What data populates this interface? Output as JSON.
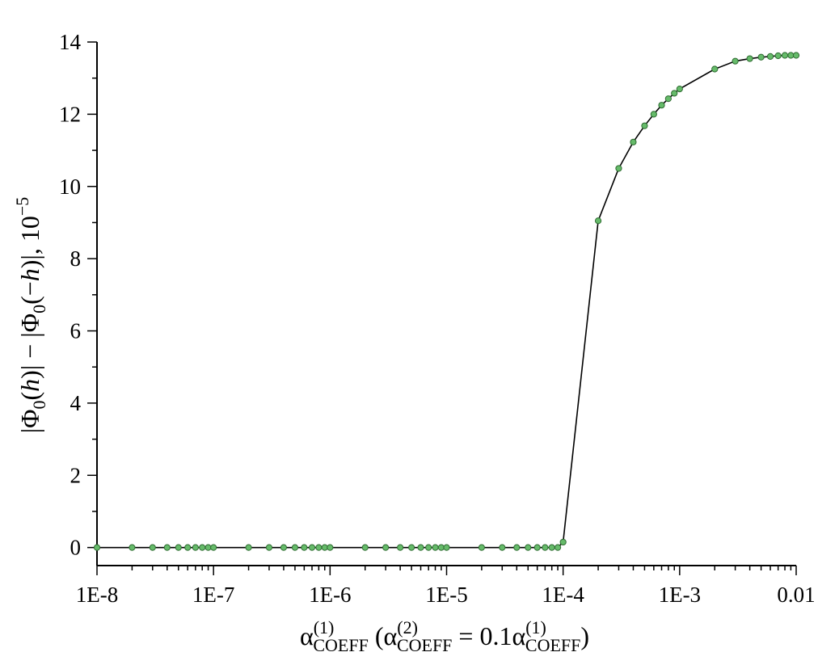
{
  "chart_data": {
    "type": "line",
    "x_scale": "log",
    "xlim": [
      "1E-8",
      "0.01"
    ],
    "ylim": [
      -0.5,
      14
    ],
    "x_tick_labels": [
      "1E-8",
      "1E-7",
      "1E-6",
      "1E-5",
      "1E-4",
      "1E-3",
      "0.01"
    ],
    "y_tick_labels": [
      "0",
      "2",
      "4",
      "6",
      "8",
      "10",
      "12",
      "14"
    ],
    "grid": false,
    "ylabel": {
      "prefix": "|Φ",
      "sub1": "0",
      "mid1": "(",
      "h1": "h",
      "mid2": ")| − |Φ",
      "sub2": "0",
      "mid3": "(−",
      "h2": "h",
      "mid4": ")|, 10",
      "exp": "−5"
    },
    "xlabel": {
      "alpha1": "α",
      "sup1": "(1)",
      "sub1": "COEFF",
      "open": " (α",
      "sup2": "(2)",
      "sub2": "COEFF",
      "eq": " = 0.1α",
      "sup3": "(1)",
      "sub3": "COEFF",
      "close": ")"
    },
    "series": [
      {
        "marker_color": "#66bb6a",
        "line_color": "#000000",
        "x": [
          1e-08,
          2e-08,
          3e-08,
          4e-08,
          5e-08,
          6e-08,
          7e-08,
          8e-08,
          9e-08,
          1e-07,
          2e-07,
          3e-07,
          4e-07,
          5e-07,
          6e-07,
          7e-07,
          8e-07,
          9e-07,
          1e-06,
          2e-06,
          3e-06,
          4e-06,
          5e-06,
          6e-06,
          7e-06,
          8e-06,
          9e-06,
          1e-05,
          2e-05,
          3e-05,
          4e-05,
          5e-05,
          6e-05,
          7e-05,
          8e-05,
          9e-05,
          0.0001,
          0.0002,
          0.0003,
          0.0004,
          0.0005,
          0.0006,
          0.0007,
          0.0008,
          0.0009,
          0.001,
          0.002,
          0.003,
          0.004,
          0.005,
          0.006,
          0.007,
          0.008,
          0.009,
          0.01
        ],
        "y": [
          0,
          0,
          0,
          0,
          0,
          0,
          0,
          0,
          0,
          0,
          0,
          0,
          0,
          0,
          0,
          0,
          0,
          0,
          0,
          0,
          0,
          0,
          0,
          0,
          0,
          0,
          0,
          0,
          0,
          0,
          0,
          0,
          0,
          0,
          0,
          0,
          0.15,
          9.05,
          10.5,
          11.23,
          11.68,
          12.0,
          12.25,
          12.43,
          12.58,
          12.7,
          13.25,
          13.47,
          13.54,
          13.58,
          13.6,
          13.62,
          13.63,
          13.63,
          13.63
        ]
      }
    ]
  }
}
